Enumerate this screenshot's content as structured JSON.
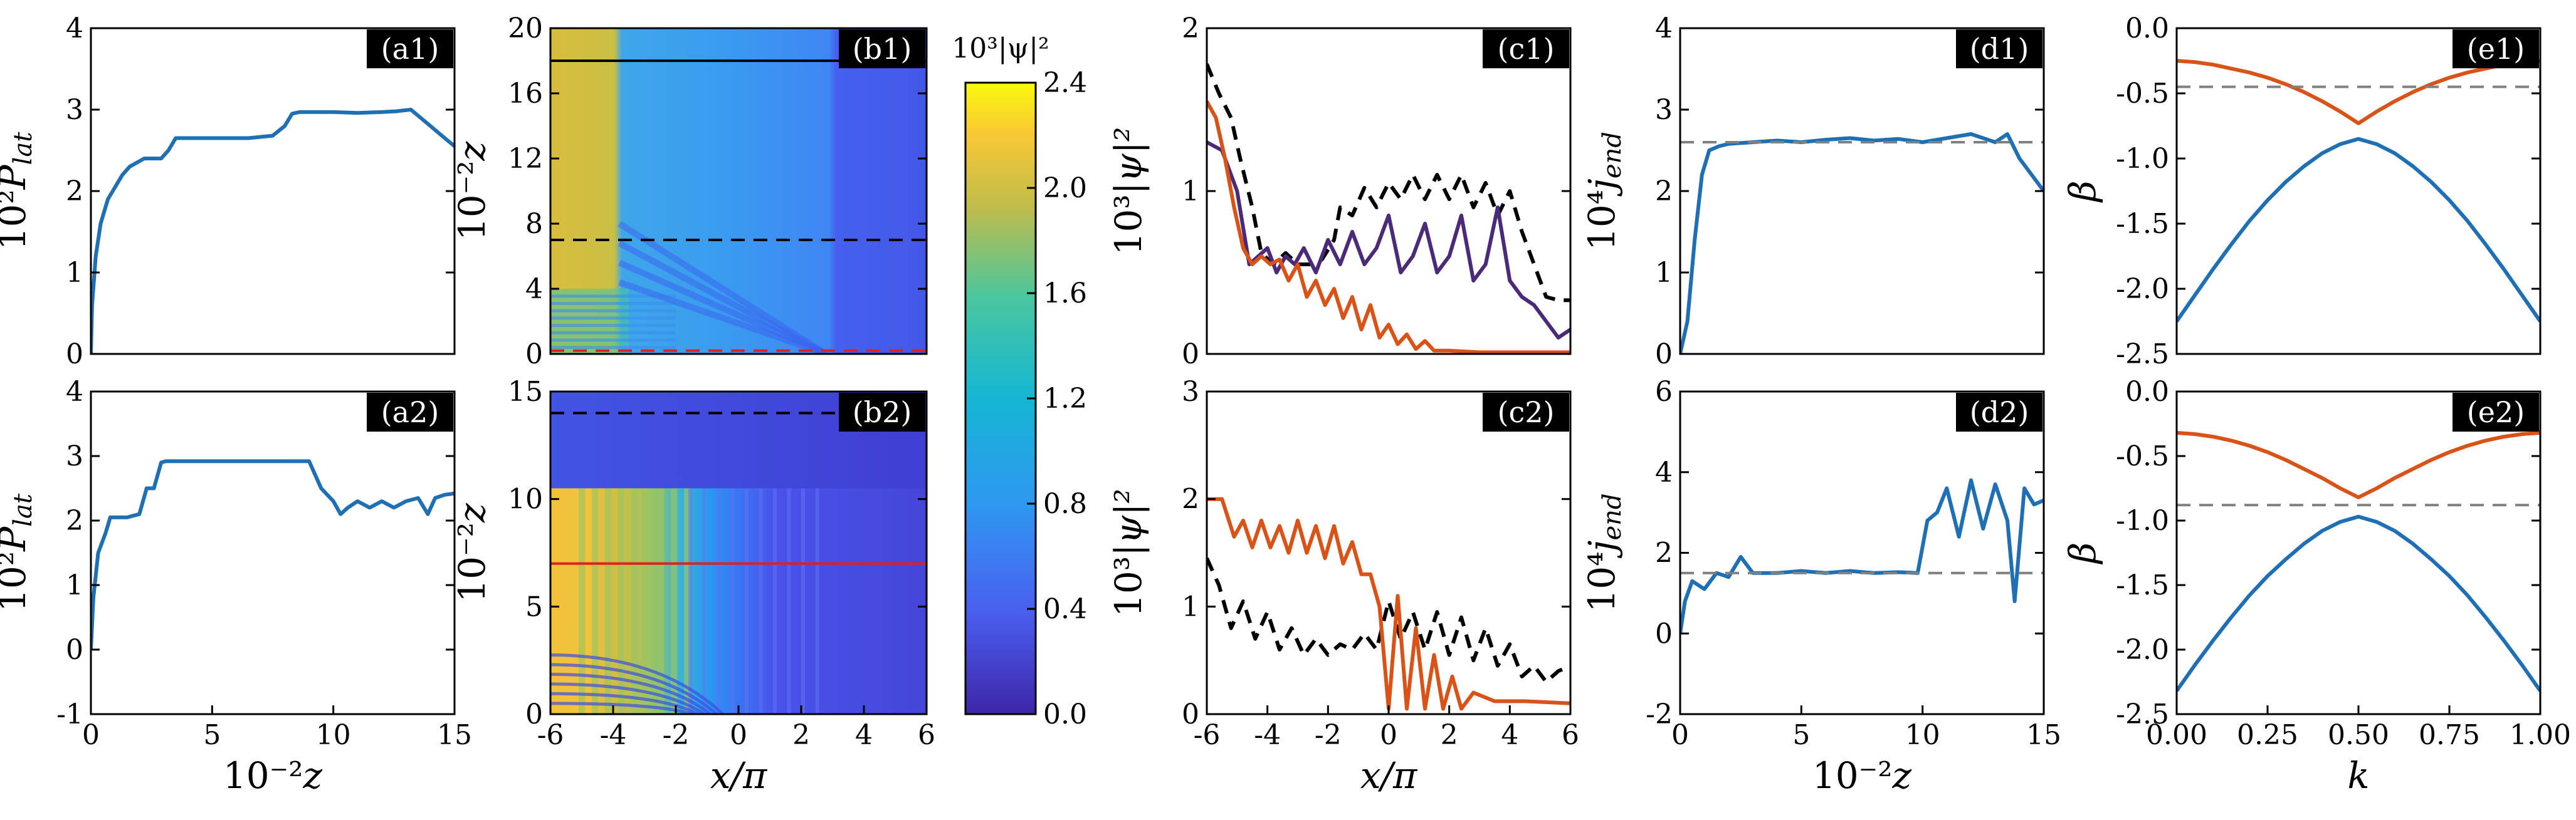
{
  "colors": {
    "blue": "#1f6fb5",
    "orange": "#d95319",
    "purple": "#4b2a7a",
    "black": "#000000",
    "gray": "#808080",
    "red": "#e02020"
  },
  "chart_data": [
    {
      "id": "a1",
      "type": "line",
      "panel_label": "(a1)",
      "ylabel": "10²P_lat",
      "xlim": [
        0,
        15
      ],
      "ylim": [
        0,
        4
      ],
      "xticks": [],
      "yticks": [
        0,
        1,
        2,
        3,
        4
      ],
      "series": [
        {
          "name": "P_lat",
          "color": "blue",
          "x": [
            0,
            0.05,
            0.2,
            0.4,
            0.7,
            1.0,
            1.3,
            1.6,
            1.9,
            2.2,
            2.5,
            2.9,
            3.2,
            3.5,
            3.8,
            4.5,
            5.5,
            6.5,
            7.5,
            8.0,
            8.3,
            8.6,
            9.0,
            10,
            11,
            12,
            12.6,
            13.2,
            13.6,
            14.2,
            14.6,
            15
          ],
          "y": [
            0,
            0.6,
            1.2,
            1.6,
            1.9,
            2.05,
            2.2,
            2.3,
            2.35,
            2.4,
            2.4,
            2.4,
            2.5,
            2.65,
            2.65,
            2.65,
            2.65,
            2.65,
            2.68,
            2.8,
            2.95,
            2.97,
            2.97,
            2.97,
            2.96,
            2.97,
            2.98,
            3.0,
            2.9,
            2.75,
            2.65,
            2.55
          ]
        }
      ]
    },
    {
      "id": "a2",
      "type": "line",
      "panel_label": "(a2)",
      "xlabel": "10⁻²z",
      "ylabel": "10²P_lat",
      "xlim": [
        0,
        15
      ],
      "ylim": [
        -1,
        4
      ],
      "xticks": [
        0,
        5,
        10,
        15
      ],
      "yticks": [
        -1,
        0,
        1,
        2,
        3,
        4
      ],
      "series": [
        {
          "name": "P_lat",
          "color": "blue",
          "x": [
            0,
            0.1,
            0.3,
            0.6,
            0.8,
            1.0,
            1.5,
            2.0,
            2.3,
            2.6,
            2.9,
            3.1,
            3.4,
            4.0,
            5.0,
            6.0,
            7.0,
            8.0,
            9.0,
            9.5,
            10.0,
            10.3,
            10.6,
            11.0,
            11.5,
            12.0,
            12.5,
            13.0,
            13.5,
            13.9,
            14.2,
            14.6,
            15
          ],
          "y": [
            0,
            0.8,
            1.5,
            1.8,
            2.05,
            2.05,
            2.05,
            2.1,
            2.5,
            2.5,
            2.9,
            2.92,
            2.92,
            2.92,
            2.92,
            2.92,
            2.92,
            2.92,
            2.92,
            2.5,
            2.3,
            2.1,
            2.2,
            2.3,
            2.2,
            2.3,
            2.2,
            2.3,
            2.35,
            2.1,
            2.35,
            2.4,
            2.42
          ]
        }
      ]
    },
    {
      "id": "b1",
      "type": "heatmap",
      "panel_label": "(b1)",
      "ylabel": "10⁻²z",
      "xlim": [
        -6,
        6
      ],
      "ylim": [
        0,
        20
      ],
      "xticks": [],
      "yticks": [
        0,
        4,
        8,
        12,
        16,
        20
      ],
      "ytick_labels": [
        "0",
        "4",
        "8",
        "12",
        "16",
        "20"
      ],
      "hlines": [
        {
          "y": 18,
          "style": "solid",
          "color": "black"
        },
        {
          "y": 7,
          "style": "dashed",
          "color": "black"
        },
        {
          "y": 0.2,
          "style": "dashed",
          "color": "red"
        }
      ]
    },
    {
      "id": "b2",
      "type": "heatmap",
      "panel_label": "(b2)",
      "xlabel": "x/π",
      "ylabel": "10⁻²z",
      "xlim": [
        -6,
        6
      ],
      "ylim": [
        0,
        15
      ],
      "xticks": [
        -6,
        -4,
        -2,
        0,
        2,
        4,
        6
      ],
      "yticks": [
        0,
        5,
        10,
        15
      ],
      "hlines": [
        {
          "y": 14,
          "style": "dashed",
          "color": "black"
        },
        {
          "y": 7,
          "style": "solid",
          "color": "red"
        }
      ]
    },
    {
      "id": "colorbar",
      "type": "colorbar",
      "title": "10³|ψ|²",
      "range": [
        0,
        2.4
      ],
      "ticks": [
        "0.0",
        "0.4",
        "0.8",
        "1.2",
        "1.6",
        "2.0",
        "2.4"
      ]
    },
    {
      "id": "c1",
      "type": "line",
      "panel_label": "(c1)",
      "ylabel": "10³|ψ|²",
      "xlim": [
        -6,
        6
      ],
      "ylim": [
        0,
        2
      ],
      "xticks": [],
      "yticks": [
        0,
        1,
        2
      ],
      "series": [
        {
          "name": "z_dashed",
          "color": "black",
          "dash": true,
          "x": [
            -6,
            -5.6,
            -5.2,
            -4.9,
            -4.5,
            -4.2,
            -3.8,
            -3.4,
            -3.0,
            -2.6,
            -2.2,
            -1.8,
            -1.6,
            -1.2,
            -0.8,
            -0.4,
            0,
            0.4,
            0.8,
            1.2,
            1.6,
            2.0,
            2.4,
            2.8,
            3.2,
            3.6,
            4.0,
            4.4,
            4.8,
            5.2,
            5.6,
            6
          ],
          "y": [
            1.78,
            1.6,
            1.45,
            1.2,
            0.9,
            0.62,
            0.55,
            0.62,
            0.55,
            0.55,
            0.58,
            0.7,
            0.9,
            0.85,
            1.02,
            0.9,
            1.05,
            0.95,
            1.1,
            0.95,
            1.1,
            0.95,
            1.1,
            0.9,
            1.05,
            0.85,
            1.0,
            0.75,
            0.55,
            0.35,
            0.33,
            0.33
          ]
        },
        {
          "name": "z_solid_purple",
          "color": "purple",
          "x": [
            -6,
            -5.5,
            -5.0,
            -4.6,
            -4.3,
            -4.0,
            -3.7,
            -3.4,
            -3.1,
            -2.8,
            -2.4,
            -2.0,
            -1.6,
            -1.2,
            -0.8,
            -0.4,
            0,
            0.4,
            0.8,
            1.2,
            1.6,
            2.0,
            2.4,
            2.8,
            3.2,
            3.6,
            4.0,
            4.4,
            4.8,
            5.2,
            5.6,
            6
          ],
          "y": [
            1.3,
            1.25,
            1.0,
            0.55,
            0.6,
            0.65,
            0.5,
            0.6,
            0.55,
            0.65,
            0.5,
            0.7,
            0.55,
            0.75,
            0.55,
            0.65,
            0.85,
            0.5,
            0.6,
            0.8,
            0.5,
            0.6,
            0.85,
            0.45,
            0.55,
            0.9,
            0.45,
            0.35,
            0.3,
            0.2,
            0.1,
            0.15
          ]
        },
        {
          "name": "z_solid_orange",
          "color": "orange",
          "x": [
            -6,
            -5.7,
            -5.4,
            -5.1,
            -4.8,
            -4.5,
            -4.2,
            -3.9,
            -3.6,
            -3.3,
            -3.0,
            -2.7,
            -2.4,
            -2.1,
            -1.8,
            -1.5,
            -1.2,
            -0.9,
            -0.6,
            -0.3,
            0,
            0.3,
            0.6,
            0.9,
            1.2,
            1.5,
            2.0,
            3.0,
            4.0,
            5.0,
            6
          ],
          "y": [
            1.55,
            1.45,
            1.2,
            0.9,
            0.65,
            0.55,
            0.6,
            0.55,
            0.58,
            0.45,
            0.55,
            0.35,
            0.45,
            0.3,
            0.4,
            0.22,
            0.35,
            0.15,
            0.3,
            0.1,
            0.18,
            0.06,
            0.12,
            0.03,
            0.08,
            0.02,
            0.02,
            0.01,
            0.01,
            0.01,
            0.01
          ]
        }
      ]
    },
    {
      "id": "c2",
      "type": "line",
      "panel_label": "(c2)",
      "xlabel": "x/π",
      "ylabel": "10³|ψ|²",
      "xlim": [
        -6,
        6
      ],
      "ylim": [
        0,
        3
      ],
      "xticks": [
        -6,
        -4,
        -2,
        0,
        2,
        4,
        6
      ],
      "yticks": [
        0,
        1,
        2,
        3
      ],
      "series": [
        {
          "name": "z_dashed",
          "color": "black",
          "dash": true,
          "x": [
            -6,
            -5.6,
            -5.2,
            -4.8,
            -4.4,
            -4.0,
            -3.6,
            -3.2,
            -2.8,
            -2.4,
            -2.0,
            -1.6,
            -1.2,
            -0.8,
            -0.4,
            0,
            0.4,
            0.8,
            1.2,
            1.6,
            2.0,
            2.4,
            2.8,
            3.2,
            3.6,
            4.0,
            4.4,
            4.8,
            5.2,
            5.6,
            6
          ],
          "y": [
            1.45,
            1.2,
            0.8,
            1.05,
            0.7,
            0.95,
            0.6,
            0.8,
            0.55,
            0.7,
            0.55,
            0.65,
            0.6,
            0.75,
            0.6,
            1.05,
            0.7,
            0.95,
            0.6,
            0.95,
            0.55,
            0.9,
            0.5,
            0.8,
            0.45,
            0.65,
            0.35,
            0.45,
            0.3,
            0.4,
            0.45
          ]
        },
        {
          "name": "z_solid_orange",
          "color": "orange",
          "x": [
            -6,
            -5.5,
            -5.1,
            -4.8,
            -4.5,
            -4.2,
            -3.9,
            -3.6,
            -3.3,
            -3.0,
            -2.7,
            -2.4,
            -2.1,
            -1.8,
            -1.5,
            -1.2,
            -0.9,
            -0.6,
            -0.3,
            0,
            0.3,
            0.6,
            0.9,
            1.2,
            1.5,
            1.8,
            2.1,
            2.4,
            2.8,
            3.5,
            4.5,
            6
          ],
          "y": [
            2.0,
            2.0,
            1.65,
            1.8,
            1.55,
            1.8,
            1.55,
            1.75,
            1.5,
            1.8,
            1.5,
            1.75,
            1.45,
            1.75,
            1.4,
            1.6,
            1.3,
            1.3,
            1.0,
            0.05,
            1.1,
            0.05,
            0.8,
            0.05,
            0.55,
            0.05,
            0.35,
            0.05,
            0.2,
            0.12,
            0.12,
            0.1
          ]
        }
      ]
    },
    {
      "id": "d1",
      "type": "line",
      "panel_label": "(d1)",
      "ylabel": "10⁴j_end",
      "xlim": [
        0,
        15
      ],
      "ylim": [
        0,
        4
      ],
      "xticks": [],
      "yticks": [
        0,
        1,
        2,
        3,
        4
      ],
      "hline": 2.6,
      "series": [
        {
          "name": "j_end",
          "color": "blue",
          "x": [
            0,
            0.3,
            0.6,
            0.9,
            1.2,
            1.6,
            2.0,
            3,
            4,
            5,
            6,
            7,
            8,
            9,
            10,
            11,
            12,
            13,
            13.5,
            14,
            14.5,
            15
          ],
          "y": [
            0,
            0.4,
            1.4,
            2.2,
            2.5,
            2.55,
            2.58,
            2.6,
            2.62,
            2.6,
            2.63,
            2.65,
            2.62,
            2.64,
            2.6,
            2.65,
            2.7,
            2.6,
            2.7,
            2.4,
            2.2,
            2.0
          ]
        }
      ]
    },
    {
      "id": "d2",
      "type": "line",
      "panel_label": "(d2)",
      "xlabel": "10⁻²z",
      "ylabel": "10⁴j_end",
      "xlim": [
        0,
        15
      ],
      "ylim": [
        -2,
        6
      ],
      "xticks": [
        0,
        5,
        10,
        15
      ],
      "yticks": [
        -2,
        0,
        2,
        4,
        6
      ],
      "hline": 1.5,
      "series": [
        {
          "name": "j_end",
          "color": "blue",
          "x": [
            0,
            0.2,
            0.5,
            1.0,
            1.5,
            2.0,
            2.5,
            3,
            4,
            5,
            6,
            7,
            8,
            9,
            9.8,
            10.2,
            10.6,
            11,
            11.5,
            12,
            12.5,
            13,
            13.5,
            13.8,
            14.2,
            14.6,
            15
          ],
          "y": [
            0,
            0.8,
            1.3,
            1.1,
            1.5,
            1.4,
            1.9,
            1.5,
            1.5,
            1.55,
            1.5,
            1.55,
            1.5,
            1.52,
            1.5,
            2.8,
            3.0,
            3.6,
            2.4,
            3.8,
            2.6,
            3.7,
            2.8,
            0.8,
            3.6,
            3.2,
            3.3
          ]
        }
      ]
    },
    {
      "id": "e1",
      "type": "line",
      "panel_label": "(e1)",
      "ylabel": "β",
      "xlim": [
        0,
        1
      ],
      "ylim": [
        -2.5,
        0
      ],
      "xticks": [],
      "yticks": [
        0,
        -0.5,
        -1.0,
        -1.5,
        -2.0,
        -2.5
      ],
      "ytick_labels": [
        "0.0",
        "-0.5",
        "-1.0",
        "-1.5",
        "-2.0",
        "-2.5"
      ],
      "hline": -0.45,
      "series": [
        {
          "name": "upper_band",
          "color": "orange",
          "x": [
            0,
            0.05,
            0.1,
            0.15,
            0.2,
            0.25,
            0.3,
            0.35,
            0.4,
            0.45,
            0.5,
            0.55,
            0.6,
            0.65,
            0.7,
            0.75,
            0.8,
            0.85,
            0.9,
            0.95,
            1.0
          ],
          "y": [
            -0.25,
            -0.26,
            -0.28,
            -0.31,
            -0.34,
            -0.38,
            -0.43,
            -0.49,
            -0.56,
            -0.64,
            -0.73,
            -0.64,
            -0.56,
            -0.49,
            -0.43,
            -0.38,
            -0.34,
            -0.31,
            -0.28,
            -0.26,
            -0.25
          ]
        },
        {
          "name": "lower_band",
          "color": "blue",
          "x": [
            0,
            0.05,
            0.1,
            0.15,
            0.2,
            0.25,
            0.3,
            0.35,
            0.4,
            0.45,
            0.5,
            0.55,
            0.6,
            0.65,
            0.7,
            0.75,
            0.8,
            0.85,
            0.9,
            0.95,
            1.0
          ],
          "y": [
            -2.25,
            -2.05,
            -1.85,
            -1.66,
            -1.48,
            -1.32,
            -1.18,
            -1.06,
            -0.96,
            -0.89,
            -0.85,
            -0.89,
            -0.96,
            -1.06,
            -1.18,
            -1.32,
            -1.48,
            -1.66,
            -1.85,
            -2.05,
            -2.25
          ]
        }
      ]
    },
    {
      "id": "e2",
      "type": "line",
      "panel_label": "(e2)",
      "xlabel": "k",
      "ylabel": "β",
      "xlim": [
        0,
        1
      ],
      "ylim": [
        -2.5,
        0
      ],
      "xticks": [
        0,
        0.25,
        0.5,
        0.75,
        1.0
      ],
      "xtick_labels": [
        "0.00",
        "0.25",
        "0.50",
        "0.75",
        "1.00"
      ],
      "yticks": [
        0,
        -0.5,
        -1.0,
        -1.5,
        -2.0,
        -2.5
      ],
      "ytick_labels": [
        "0.0",
        "-0.5",
        "-1.0",
        "-1.5",
        "-2.0",
        "-2.5"
      ],
      "hline": -0.88,
      "series": [
        {
          "name": "upper_band",
          "color": "orange",
          "x": [
            0,
            0.05,
            0.1,
            0.15,
            0.2,
            0.25,
            0.3,
            0.35,
            0.4,
            0.45,
            0.5,
            0.55,
            0.6,
            0.65,
            0.7,
            0.75,
            0.8,
            0.85,
            0.9,
            0.95,
            1.0
          ],
          "y": [
            -0.32,
            -0.33,
            -0.35,
            -0.38,
            -0.42,
            -0.47,
            -0.53,
            -0.6,
            -0.67,
            -0.75,
            -0.82,
            -0.75,
            -0.67,
            -0.6,
            -0.53,
            -0.47,
            -0.42,
            -0.38,
            -0.35,
            -0.33,
            -0.32
          ]
        },
        {
          "name": "lower_band",
          "color": "blue",
          "x": [
            0,
            0.05,
            0.1,
            0.15,
            0.2,
            0.25,
            0.3,
            0.35,
            0.4,
            0.45,
            0.5,
            0.55,
            0.6,
            0.65,
            0.7,
            0.75,
            0.8,
            0.85,
            0.9,
            0.95,
            1.0
          ],
          "y": [
            -2.32,
            -2.12,
            -1.93,
            -1.75,
            -1.58,
            -1.43,
            -1.3,
            -1.18,
            -1.08,
            -1.01,
            -0.97,
            -1.01,
            -1.08,
            -1.18,
            -1.3,
            -1.43,
            -1.58,
            -1.75,
            -1.93,
            -2.12,
            -2.32
          ]
        }
      ]
    }
  ]
}
